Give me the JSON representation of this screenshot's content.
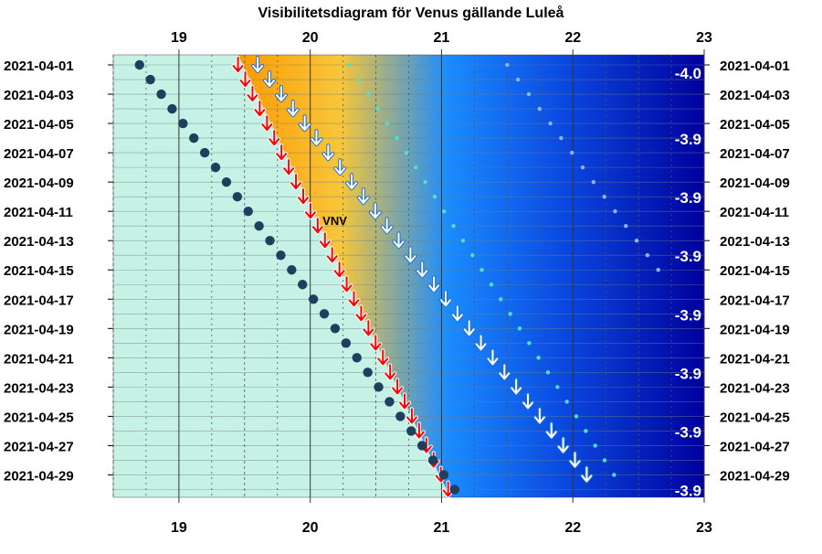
{
  "chart_data": {
    "type": "visibility-diagram",
    "title": "Visibilitetsdiagram för Venus gällande Luleå",
    "x_ticks": [
      "19",
      "20",
      "21",
      "22",
      "23"
    ],
    "x_range": [
      18.5,
      23.0
    ],
    "dates": [
      "2021-04-01",
      "2021-04-03",
      "2021-04-05",
      "2021-04-07",
      "2021-04-09",
      "2021-04-11",
      "2021-04-13",
      "2021-04-15",
      "2021-04-17",
      "2021-04-19",
      "2021-04-21",
      "2021-04-23",
      "2021-04-25",
      "2021-04-27",
      "2021-04-29"
    ],
    "day_range": [
      1,
      30
    ],
    "sunset": {
      "day": [
        1,
        30
      ],
      "hour": [
        19.45,
        21.05
      ]
    },
    "venus_set": {
      "day": [
        1,
        30
      ],
      "hour": [
        18.7,
        21.1
      ]
    },
    "civil_twilight_end": {
      "day": [
        1,
        29.5
      ],
      "hour": [
        19.6,
        22.15
      ]
    },
    "nautical_twilight_end": {
      "day": [
        1,
        29.5
      ],
      "hour": [
        20.3,
        22.35
      ]
    },
    "astronomical_twilight_end": {
      "day": [
        1,
        15
      ],
      "hour": [
        21.5,
        22.65
      ]
    },
    "magnitudes": [
      {
        "day": 1.5,
        "label": "-4.0"
      },
      {
        "day": 6,
        "label": "-3.9"
      },
      {
        "day": 10,
        "label": "-3.9"
      },
      {
        "day": 14,
        "label": "-3.9"
      },
      {
        "day": 18,
        "label": "-3.9"
      },
      {
        "day": 22,
        "label": "-3.9"
      },
      {
        "day": 26,
        "label": "-3.9"
      },
      {
        "day": 30,
        "label": "-3.9"
      }
    ],
    "direction_label": {
      "text": "VNV",
      "day": 11.6,
      "hour": 20.08
    },
    "colors": {
      "twilight_light": "#c6f2e6",
      "orange": "#ff9a00",
      "yellow": "#f7c63a",
      "blue": "#1a70ff",
      "dark_blue": "#00009c",
      "sun_arrow": "#ff0000",
      "venus_dot": "#1f3f5f"
    }
  }
}
